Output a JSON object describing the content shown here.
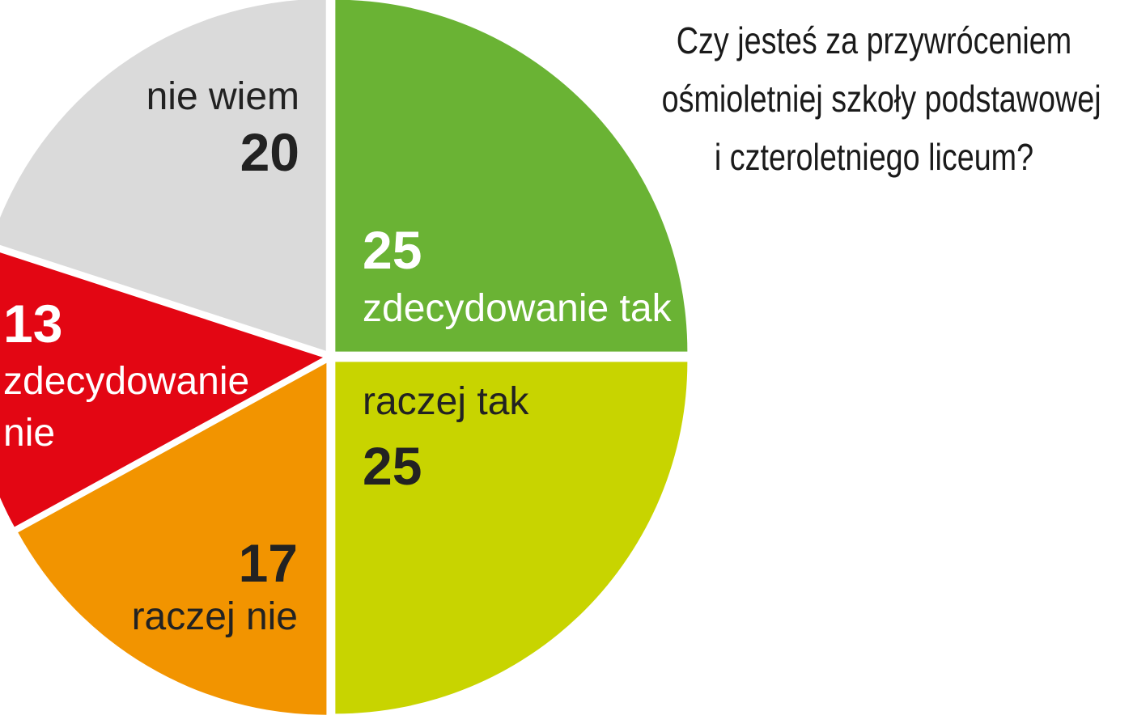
{
  "chart_data": {
    "type": "pie",
    "title_lines": [
      "Czy jesteś za przywróceniem",
      "ośmioletniej szkoły podstawowej",
      "i czteroletniego liceum?"
    ],
    "slices": [
      {
        "label": "zdecydowanie tak",
        "value": 25,
        "color": "#6ab334",
        "text_color": "#ffffff"
      },
      {
        "label": "raczej tak",
        "value": 25,
        "color": "#c8d400",
        "text_color": "#222222"
      },
      {
        "label": "raczej nie",
        "value": 17,
        "color": "#f29400",
        "text_color": "#222222"
      },
      {
        "label": "zdecydowanie nie",
        "value": 13,
        "color": "#e30613",
        "text_color": "#ffffff"
      },
      {
        "label": "nie wiem",
        "value": 20,
        "color": "#dadada",
        "text_color": "#222222"
      }
    ]
  }
}
